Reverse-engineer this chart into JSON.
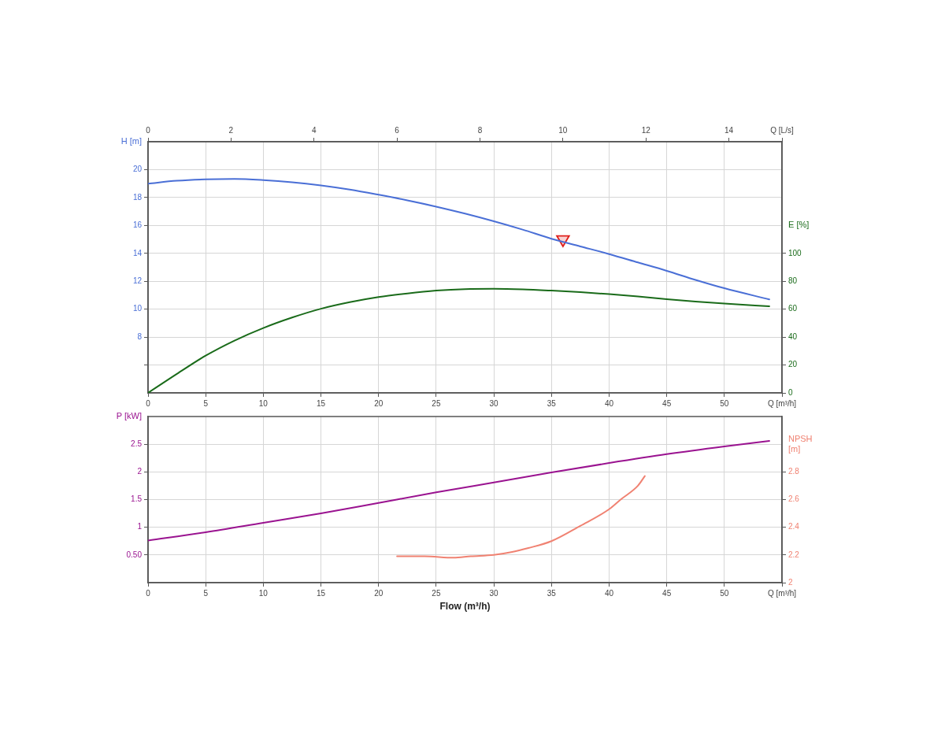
{
  "chart_data": [
    {
      "type": "line",
      "ylabel": "H [m]",
      "y2label": "E [%]",
      "xlim": [
        0,
        55
      ],
      "xticks": [
        0,
        5,
        10,
        15,
        20,
        25,
        30,
        35,
        40,
        45,
        50,
        {
          "value": 55,
          "label": "Q [m³/h]"
        }
      ],
      "x2lim": [
        0,
        15.28
      ],
      "x2ticks": [
        0,
        2,
        4,
        6,
        8,
        10,
        12,
        14,
        {
          "value": 15.28,
          "label": "Q [L/s]"
        }
      ],
      "ylim": [
        4,
        22
      ],
      "yticks": [
        {
          "value": 6,
          "label": null
        },
        8,
        10,
        12,
        14,
        16,
        18,
        20
      ],
      "y2lim": [
        0,
        180
      ],
      "y2ticks": [
        0,
        20,
        40,
        60,
        80,
        100
      ],
      "grid": true,
      "series": [
        {
          "color": "#4a6fd6",
          "x": [
            0,
            2.5,
            5,
            7.5,
            10,
            12.5,
            15,
            17.5,
            20,
            22.5,
            25,
            27.5,
            30,
            32.5,
            35,
            37.5,
            40,
            42.5,
            45,
            47.5,
            50,
            53.9
          ],
          "values": [
            19.0,
            19.2,
            19.3,
            19.33,
            19.25,
            19.1,
            18.87,
            18.57,
            18.2,
            17.8,
            17.35,
            16.85,
            16.3,
            15.7,
            15.05,
            14.5,
            13.95,
            13.35,
            12.75,
            12.1,
            11.5,
            10.7
          ]
        },
        {
          "color": "#1a6b1a",
          "axis": "y2",
          "x": [
            0,
            2.5,
            5,
            7.5,
            10,
            12.5,
            15,
            17.5,
            20,
            22.5,
            25,
            27.5,
            30,
            32.5,
            35,
            37.5,
            40,
            42.5,
            45,
            47.5,
            50,
            53.9
          ],
          "values": [
            0,
            13.6,
            26.7,
            37.5,
            46.5,
            54,
            60.3,
            65,
            68.7,
            71.3,
            73.3,
            74.4,
            74.6,
            74.2,
            73.3,
            72.2,
            70.8,
            69.1,
            67.2,
            65.5,
            64,
            62.1
          ]
        },
        {
          "type": "scatter",
          "color": "#e0201c",
          "marker": "triangle",
          "x": [
            36
          ],
          "values": [
            15
          ]
        }
      ]
    },
    {
      "type": "line",
      "xlabel": "Flow (m³/h)",
      "ylabel": "P [kW]",
      "y2label": "NPSH [m]",
      "xlim": [
        0,
        55
      ],
      "xticks": [
        0,
        5,
        10,
        15,
        20,
        25,
        30,
        35,
        40,
        45,
        50,
        {
          "value": 55,
          "label": "Q [m³/h]"
        }
      ],
      "ylim": [
        0,
        3
      ],
      "yticks": [
        {
          "value": 0.5,
          "label": "0.50"
        },
        1,
        1.5,
        2,
        2.5
      ],
      "y2lim": [
        2,
        3.2
      ],
      "y2ticks": [
        2,
        2.2,
        2.4,
        2.6,
        2.8
      ],
      "grid": true,
      "series": [
        {
          "color": "#9a1390",
          "x": [
            0,
            5,
            10,
            15,
            20,
            25,
            30,
            35,
            40,
            45,
            50,
            53.9
          ],
          "values": [
            0.76,
            0.91,
            1.08,
            1.25,
            1.44,
            1.63,
            1.81,
            1.99,
            2.16,
            2.32,
            2.46,
            2.56
          ]
        },
        {
          "color": "#f08272",
          "axis": "y2",
          "x": [
            21.6,
            24,
            26.5,
            28,
            30,
            31.5,
            33,
            35,
            37.5,
            40,
            41,
            42.5,
            43.1
          ],
          "values": [
            2.19,
            2.19,
            2.18,
            2.19,
            2.2,
            2.22,
            2.25,
            2.3,
            2.41,
            2.53,
            2.6,
            2.7,
            2.77
          ]
        }
      ]
    }
  ]
}
